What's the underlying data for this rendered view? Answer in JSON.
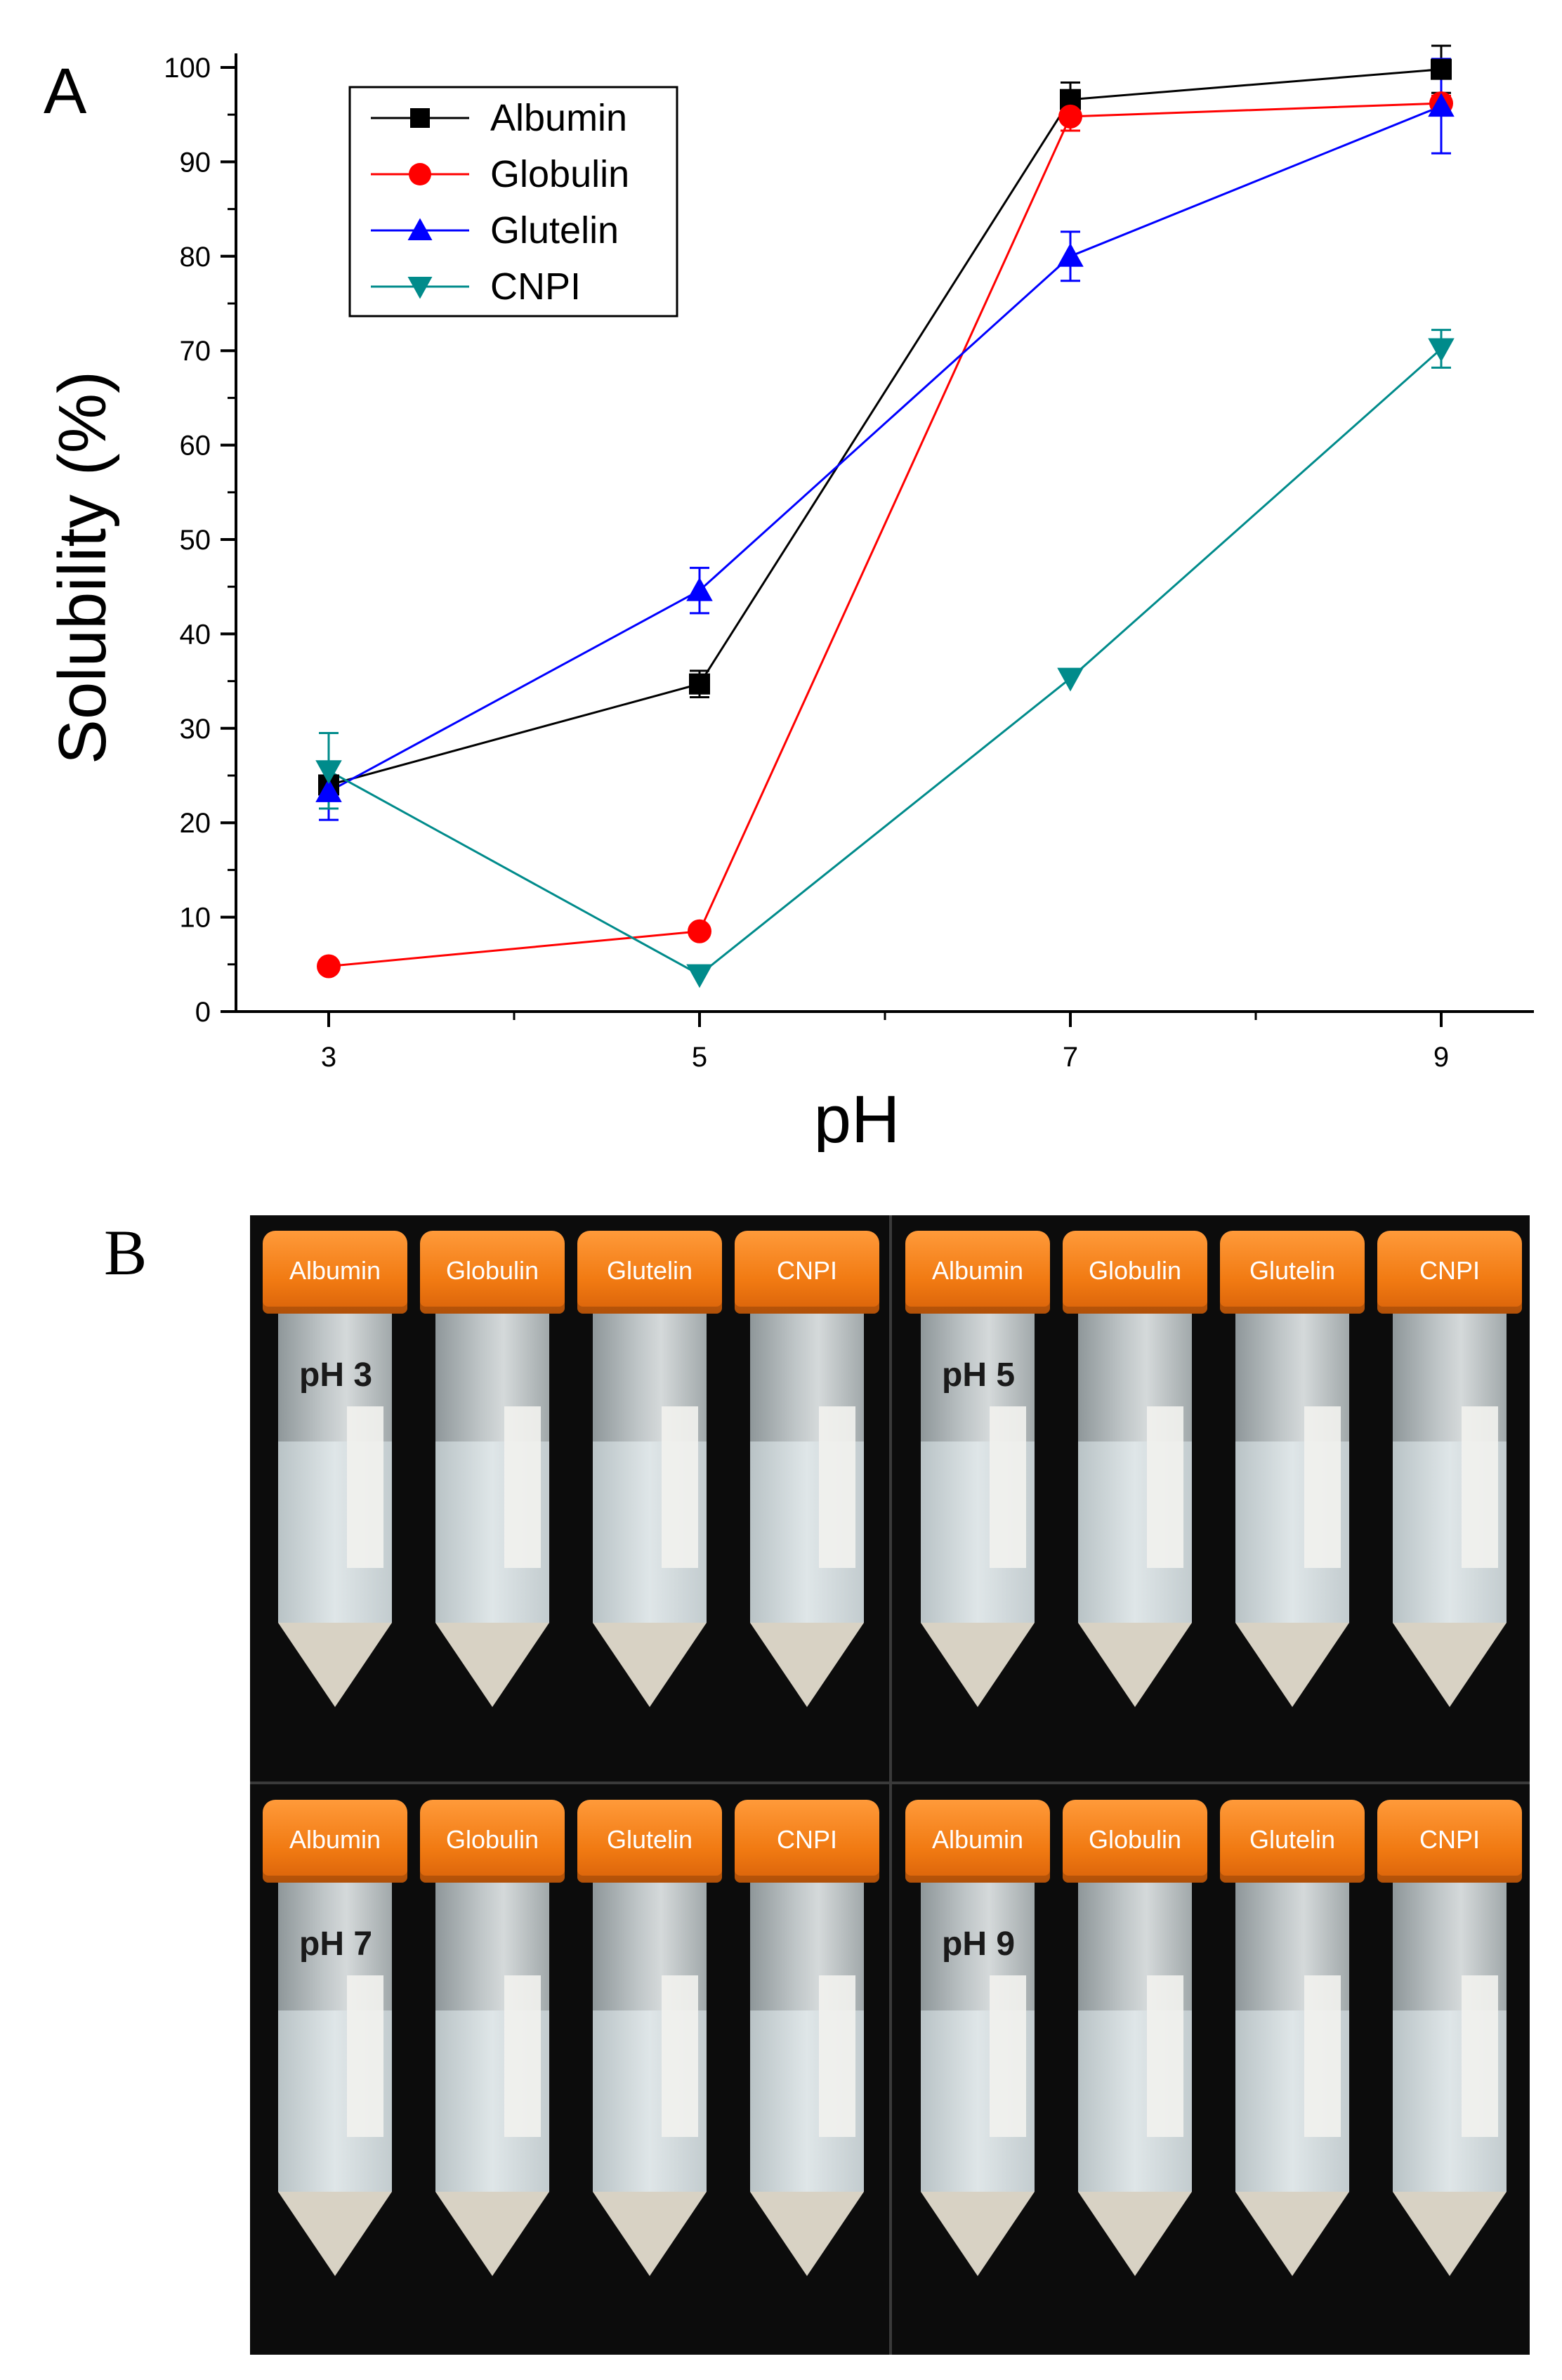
{
  "panel_a": {
    "letter": "A"
  },
  "panel_b": {
    "letter": "B",
    "groups": [
      {
        "ph_label": "pH 3",
        "caps": [
          "Albumin",
          "Globulin",
          "Glutelin",
          "CNPI"
        ]
      },
      {
        "ph_label": "pH 5",
        "caps": [
          "Albumin",
          "Globulin",
          "Glutelin",
          "CNPI"
        ]
      },
      {
        "ph_label": "pH 7",
        "caps": [
          "Albumin",
          "Globulin",
          "Glutelin",
          "CNPI"
        ]
      },
      {
        "ph_label": "pH 9",
        "caps": [
          "Albumin",
          "Globulin",
          "Glutelin",
          "CNPI"
        ]
      }
    ]
  },
  "chart_data": {
    "type": "line",
    "title": "",
    "xlabel": "pH",
    "ylabel": "Solubility (%)",
    "x": [
      3,
      5,
      7,
      9
    ],
    "xticks": [
      "3",
      "5",
      "7",
      "9"
    ],
    "yticks": [
      "0",
      "10",
      "20",
      "30",
      "40",
      "50",
      "60",
      "70",
      "80",
      "90",
      "100"
    ],
    "xlim": [
      2.5,
      9.5
    ],
    "ylim": [
      0,
      100
    ],
    "legend_position": "top-left",
    "grid": false,
    "series": [
      {
        "name": "Albumin",
        "color": "#000000",
        "marker": "square",
        "values": [
          24.0,
          34.7,
          96.6,
          99.8
        ],
        "errors": [
          0,
          1.4,
          1.8,
          2.5
        ]
      },
      {
        "name": "Globulin",
        "color": "#ff0000",
        "marker": "circle",
        "values": [
          4.8,
          8.5,
          94.8,
          96.2
        ],
        "errors": [
          0,
          0,
          1.5,
          0.8
        ]
      },
      {
        "name": "Glutelin",
        "color": "#0000ff",
        "marker": "triangle-up",
        "values": [
          23.3,
          44.6,
          80.0,
          95.9
        ],
        "errors": [
          3.0,
          2.4,
          2.6,
          5.0
        ]
      },
      {
        "name": "CNPI",
        "color": "#008b8b",
        "marker": "triangle-down",
        "values": [
          25.5,
          3.9,
          35.3,
          70.2
        ],
        "errors": [
          4.0,
          0,
          0,
          2.0
        ]
      }
    ]
  }
}
